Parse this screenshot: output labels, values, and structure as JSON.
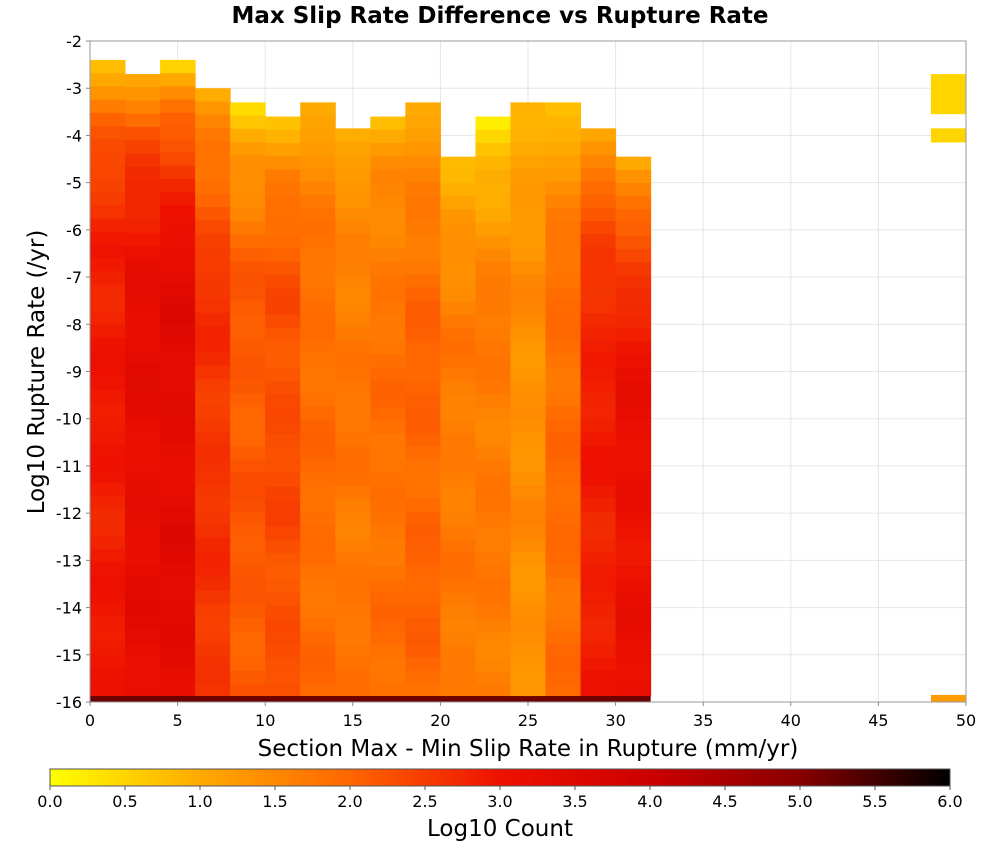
{
  "chart_data": {
    "type": "heatmap",
    "title": "Max Slip Rate Difference vs Rupture Rate",
    "xlabel": "Section Max - Min Slip Rate in Rupture (mm/yr)",
    "ylabel": "Log10 Rupture Rate (/yr)",
    "xlim": [
      0,
      50
    ],
    "ylim": [
      -16,
      -2
    ],
    "x_ticks": [
      "0",
      "5",
      "10",
      "15",
      "20",
      "25",
      "30",
      "35",
      "40",
      "45",
      "50"
    ],
    "y_ticks": [
      "-2",
      "-3",
      "-4",
      "-5",
      "-6",
      "-7",
      "-8",
      "-9",
      "-10",
      "-11",
      "-12",
      "-13",
      "-14",
      "-15",
      "-16"
    ],
    "grid": true,
    "bin_width_x": 2,
    "bin_height_y": 0.28,
    "colorbar": {
      "label": "Log10 Count",
      "range": [
        0,
        6
      ],
      "ticks": [
        "0.0",
        "0.5",
        "1.0",
        "1.5",
        "2.0",
        "2.5",
        "3.0",
        "3.5",
        "4.0",
        "4.5",
        "5.0",
        "5.5",
        "6.0"
      ],
      "colors": [
        "#ffff00",
        "#ffaa00",
        "#ff6600",
        "#ee1100",
        "#cc0000",
        "#880000",
        "#000000"
      ]
    },
    "columns": [
      {
        "x_start": 0,
        "y_top": -2.4,
        "peak": 2.9,
        "top_value": 0.8
      },
      {
        "x_start": 2,
        "y_top": -2.7,
        "peak": 3.25,
        "top_value": 0.9
      },
      {
        "x_start": 4,
        "y_top": -2.4,
        "peak": 3.35,
        "top_value": 0.3
      },
      {
        "x_start": 6,
        "y_top": -3.0,
        "peak": 2.6,
        "top_value": 0.8
      },
      {
        "x_start": 8,
        "y_top": -3.3,
        "peak": 2.15,
        "top_value": 0.4
      },
      {
        "x_start": 10,
        "y_top": -3.6,
        "peak": 2.3,
        "top_value": 0.8
      },
      {
        "x_start": 12,
        "y_top": -3.3,
        "peak": 1.9,
        "top_value": 0.9
      },
      {
        "x_start": 14,
        "y_top": -3.85,
        "peak": 1.75,
        "top_value": 0.8
      },
      {
        "x_start": 16,
        "y_top": -3.6,
        "peak": 1.85,
        "top_value": 0.8
      },
      {
        "x_start": 18,
        "y_top": -3.3,
        "peak": 2.0,
        "top_value": 0.8
      },
      {
        "x_start": 20,
        "y_top": -4.45,
        "peak": 1.7,
        "top_value": 0.8
      },
      {
        "x_start": 22,
        "y_top": -3.6,
        "peak": 1.7,
        "top_value": 0.1
      },
      {
        "x_start": 24,
        "y_top": -3.3,
        "peak": 1.4,
        "top_value": 0.9
      },
      {
        "x_start": 26,
        "y_top": -3.3,
        "peak": 1.9,
        "top_value": 0.6
      },
      {
        "x_start": 28,
        "y_top": -3.85,
        "peak": 2.85,
        "top_value": 0.9
      },
      {
        "x_start": 30,
        "y_top": -4.45,
        "peak": 3.1,
        "top_value": 0.7
      }
    ],
    "bottom_row": {
      "y": -16,
      "value": 5.2,
      "x_range": [
        0,
        32
      ]
    },
    "isolated_cells": [
      {
        "x_start": 48,
        "y_range": [
          -3.55,
          -2.7
        ],
        "value": 0.5
      },
      {
        "x_start": 48,
        "y_range": [
          -4.15,
          -3.85
        ],
        "value": 0.5
      },
      {
        "x_start": 48,
        "y_range": [
          -16,
          -15.85
        ],
        "value": 1.2
      }
    ]
  }
}
